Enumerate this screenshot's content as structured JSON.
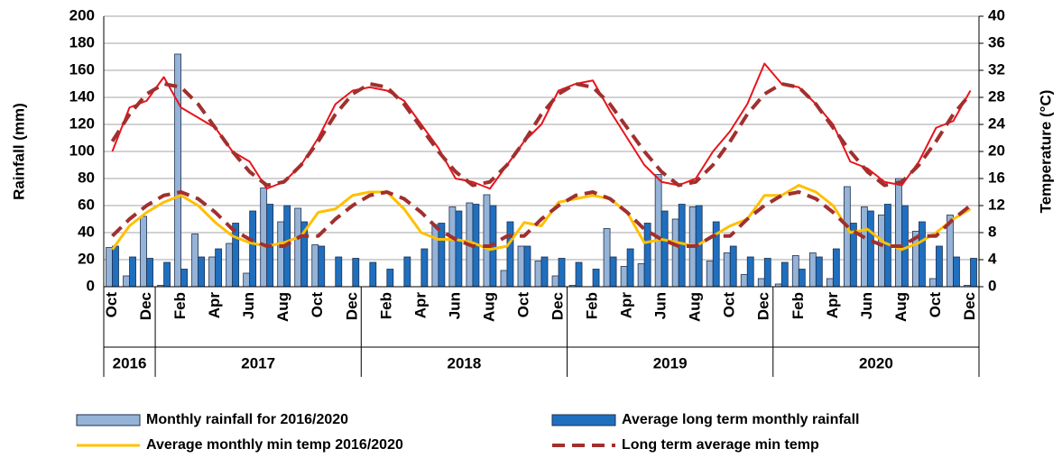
{
  "chart_data": {
    "type": "bar-line",
    "y_label": "Rainfall (mm)",
    "y2_label": "Temperature (°C)",
    "ylim": [
      0,
      200
    ],
    "yticks": [
      0,
      20,
      40,
      60,
      80,
      100,
      120,
      140,
      160,
      180,
      200
    ],
    "y2lim": [
      0,
      40
    ],
    "y2ticks": [
      0,
      4,
      8,
      12,
      16,
      20,
      24,
      28,
      32,
      36,
      40
    ],
    "grid": true,
    "categories": [
      "Oct",
      null,
      "Dec",
      null,
      "Feb",
      null,
      "Apr",
      null,
      "Jun",
      null,
      "Aug",
      null,
      "Oct",
      null,
      "Dec",
      null,
      "Feb",
      null,
      "Apr",
      null,
      "Jun",
      null,
      "Aug",
      null,
      "Oct",
      null,
      "Dec",
      null,
      "Feb",
      null,
      "Apr",
      null,
      "Jun",
      null,
      "Aug",
      null,
      "Oct",
      null,
      "Dec",
      null,
      "Feb",
      null,
      "Apr",
      null,
      "Jun",
      null,
      "Aug",
      null,
      "Oct",
      null,
      "Dec"
    ],
    "year_groups": [
      {
        "label": "2016",
        "months": 3
      },
      {
        "label": "2017",
        "months": 12
      },
      {
        "label": "2018",
        "months": 12
      },
      {
        "label": "2019",
        "months": 12
      },
      {
        "label": "2020",
        "months": 12
      }
    ],
    "series": [
      {
        "name": "Monthly rainfall for 2016/2020",
        "kind": "bar",
        "color": "#95b3d7",
        "values": [
          29,
          8,
          52,
          1,
          172,
          39,
          22,
          32,
          10,
          73,
          48,
          58,
          31,
          0,
          0,
          0,
          0,
          0,
          0,
          46,
          59,
          62,
          68,
          12,
          30,
          19,
          8,
          1,
          0,
          43,
          15,
          17,
          83,
          50,
          59,
          19,
          25,
          9,
          6,
          2,
          23,
          25,
          6,
          74,
          59,
          53,
          80,
          41,
          6,
          53,
          1
        ]
      },
      {
        "name": "Average long term monthly rainfall",
        "kind": "bar",
        "color": "#1f6fbf",
        "values": [
          30,
          22,
          21,
          18,
          13,
          22,
          28,
          47,
          56,
          61,
          60,
          48,
          30,
          22,
          21,
          18,
          13,
          22,
          28,
          47,
          56,
          61,
          60,
          48,
          30,
          22,
          21,
          18,
          13,
          22,
          28,
          47,
          56,
          61,
          60,
          48,
          30,
          22,
          21,
          18,
          13,
          22,
          28,
          47,
          56,
          61,
          60,
          48,
          30,
          22,
          21
        ]
      },
      {
        "name": "Average monthly min temp 2016/2020",
        "kind": "line",
        "axis": "y2",
        "color": "#ffc000",
        "dash": false,
        "values": [
          5.5,
          9,
          11,
          12.5,
          13.5,
          12,
          9.5,
          7.5,
          6.5,
          6,
          6.5,
          7.5,
          11,
          11.5,
          13.5,
          14,
          14,
          11.5,
          8,
          7,
          7,
          6.5,
          5.5,
          6,
          9.5,
          9,
          12.5,
          13,
          13.5,
          13,
          11,
          6.5,
          7,
          6.5,
          6,
          7.5,
          9,
          10,
          13.5,
          13.5,
          15,
          14,
          12,
          8,
          8.5,
          6.5,
          5.5,
          6.5,
          8,
          10,
          11.5
        ]
      },
      {
        "name": "Long term average min temp",
        "kind": "line",
        "axis": "y2",
        "color": "#a0302e",
        "dash": true,
        "values": [
          7.5,
          10,
          12,
          13.5,
          14,
          13,
          11,
          8.5,
          7,
          6,
          6,
          7.5,
          7.5,
          10,
          12,
          13.5,
          14,
          13,
          11,
          8.5,
          7,
          6,
          6,
          7.5,
          7.5,
          10,
          12,
          13.5,
          14,
          13,
          11,
          8.5,
          7,
          6,
          6,
          7.5,
          7.5,
          10,
          12,
          13.5,
          14,
          13,
          11,
          8.5,
          7,
          6,
          6,
          7.5,
          7.5,
          10,
          12
        ]
      },
      {
        "kind": "line",
        "axis": "y2",
        "color": "#e8141c",
        "dash": false,
        "values": [
          20,
          26.5,
          27.5,
          31,
          26.5,
          25,
          23.5,
          20,
          18.5,
          14.5,
          15.5,
          18,
          22,
          27,
          29,
          29.5,
          29,
          27.5,
          24,
          20.5,
          16,
          15.5,
          14.5,
          18,
          21.5,
          24,
          29,
          30,
          30.5,
          26,
          22,
          18,
          15.5,
          15,
          16,
          20,
          23,
          27,
          33,
          30,
          29.5,
          27,
          24,
          18.5,
          17.5,
          15.5,
          15,
          18.5,
          23.5,
          24.5,
          29
        ]
      },
      {
        "kind": "line",
        "axis": "y2",
        "color": "#a0302e",
        "dash": true,
        "values": [
          21.5,
          25.5,
          28.5,
          30,
          29.5,
          27,
          23.5,
          20,
          17,
          15,
          15.5,
          18,
          21.5,
          25.5,
          28.5,
          30,
          29.5,
          27,
          23.5,
          20,
          17,
          15,
          15.5,
          18,
          21.5,
          25.5,
          28.5,
          30,
          29.5,
          27,
          23.5,
          20,
          17,
          15,
          15.5,
          18,
          21.5,
          25.5,
          28.5,
          30,
          29.5,
          27,
          23.5,
          20,
          17,
          15,
          15.5,
          18,
          21.5,
          25.5,
          28.5
        ]
      }
    ]
  }
}
